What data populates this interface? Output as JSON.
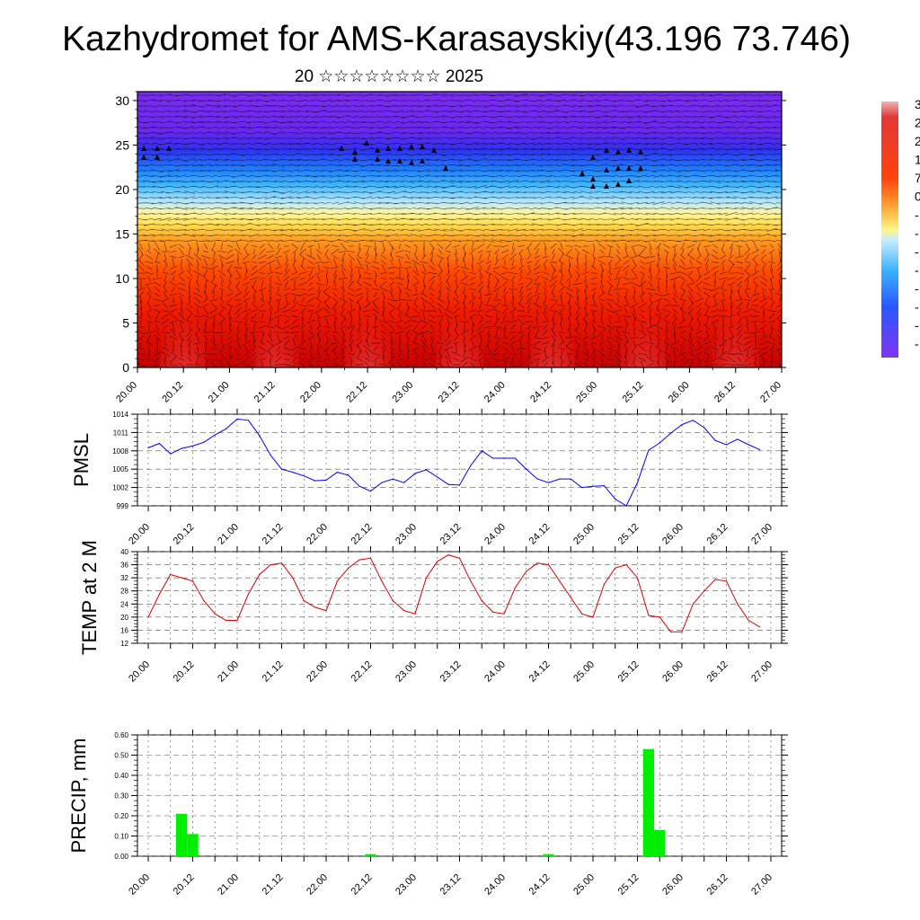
{
  "title": "Kazhydromet for AMS-Karasayskiy(43.196 73.746)",
  "subtitle": "20 ☆☆☆☆☆☆☆☆ 2025",
  "time_ticks": [
    "20.00",
    "20.12",
    "21.00",
    "21.12",
    "22.00",
    "22.12",
    "23.00",
    "23.12",
    "24.00",
    "24.12",
    "25.00",
    "25.12",
    "26.00",
    "26.12",
    "27.00"
  ],
  "colors": {
    "pmsl_line": "#0000ff",
    "temp_line": "#e00000",
    "precip_bar": "#00ee00",
    "wind_arrow": "#000000"
  },
  "chart_data": [
    {
      "type": "heatmap",
      "name": "temperature-wind-cross-section",
      "x_range_hours": [
        0,
        168
      ],
      "y_ticks": [
        0,
        5,
        10,
        15,
        20,
        25,
        30
      ],
      "ylim": [
        0,
        31
      ],
      "colorbar_labels": [
        "3",
        "2",
        "2",
        "1",
        "7",
        "0",
        "-",
        "-",
        "-",
        "-",
        "-",
        "-",
        "-",
        "-"
      ],
      "wind_barbs": true
    },
    {
      "type": "line",
      "name": "pmsl",
      "ylabel": "PMSL",
      "ylim": [
        999,
        1014
      ],
      "y_ticks": [
        999,
        1002,
        1005,
        1008,
        1011,
        1014
      ],
      "x_hours": [
        0,
        3,
        6,
        9,
        12,
        15,
        18,
        21,
        24,
        27,
        30,
        33,
        36,
        39,
        42,
        45,
        48,
        51,
        54,
        57,
        60,
        63,
        66,
        69,
        72,
        75,
        78,
        81,
        84,
        87,
        90,
        93,
        96,
        99,
        102,
        105,
        108,
        111,
        114,
        117,
        120,
        123,
        126,
        129,
        132,
        135,
        138,
        141,
        144,
        147,
        150,
        153,
        156,
        159,
        162,
        165
      ],
      "values": [
        1008.5,
        1009.2,
        1007.5,
        1008.4,
        1008.8,
        1009.4,
        1010.6,
        1011.6,
        1013.2,
        1013.0,
        1010.5,
        1007.3,
        1005.0,
        1004.5,
        1003.9,
        1003.1,
        1003.2,
        1004.5,
        1004.0,
        1002.2,
        1001.4,
        1002.8,
        1003.4,
        1002.8,
        1004.3,
        1004.9,
        1003.7,
        1002.5,
        1002.4,
        1005.6,
        1008.0,
        1006.8,
        1006.8,
        1006.8,
        1005.0,
        1003.4,
        1002.8,
        1003.4,
        1003.4,
        1002.0,
        1002.2,
        1002.3,
        1000.1,
        999.0,
        1002.8,
        1008.1,
        1009.3,
        1010.9,
        1012.3,
        1013.0,
        1011.8,
        1009.7,
        1009.0,
        1009.9,
        1009.0,
        1008.2
      ]
    },
    {
      "type": "line",
      "name": "temp-2m",
      "ylabel": "TEMP at 2 M",
      "ylim": [
        12,
        40
      ],
      "y_ticks": [
        12,
        16,
        20,
        24,
        28,
        32,
        36,
        40
      ],
      "x_hours": [
        0,
        3,
        6,
        9,
        12,
        15,
        18,
        21,
        24,
        27,
        30,
        33,
        36,
        39,
        42,
        45,
        48,
        51,
        54,
        57,
        60,
        63,
        66,
        69,
        72,
        75,
        78,
        81,
        84,
        87,
        90,
        93,
        96,
        99,
        102,
        105,
        108,
        111,
        114,
        117,
        120,
        123,
        126,
        129,
        132,
        135,
        138,
        141,
        144,
        147,
        150,
        153,
        156,
        159,
        162,
        165
      ],
      "values": [
        20,
        27,
        33,
        32,
        31,
        25,
        21,
        19,
        19,
        27,
        33,
        36,
        36.5,
        32,
        25,
        23,
        22,
        31,
        35,
        37.5,
        38,
        31,
        25,
        22,
        21,
        32,
        37,
        39,
        38,
        31,
        25,
        21.5,
        21,
        29,
        34,
        36.5,
        36,
        31,
        26,
        21,
        20,
        30,
        35,
        36,
        32,
        20.5,
        20,
        15.5,
        15.5,
        24,
        28,
        31.5,
        31,
        24,
        19,
        17
      ]
    },
    {
      "type": "bar",
      "name": "precip",
      "ylabel": "PRECIP, mm",
      "ylim": [
        0,
        0.6
      ],
      "y_ticks": [
        "0.00",
        "0.10",
        "0.20",
        "0.30",
        "0.40",
        "0.50",
        "0.60"
      ],
      "bar_width_hours": 3,
      "x_hours": [
        9,
        12,
        60,
        108,
        135,
        138
      ],
      "values": [
        0.21,
        0.11,
        0.01,
        0.01,
        0.53,
        0.13
      ]
    }
  ]
}
